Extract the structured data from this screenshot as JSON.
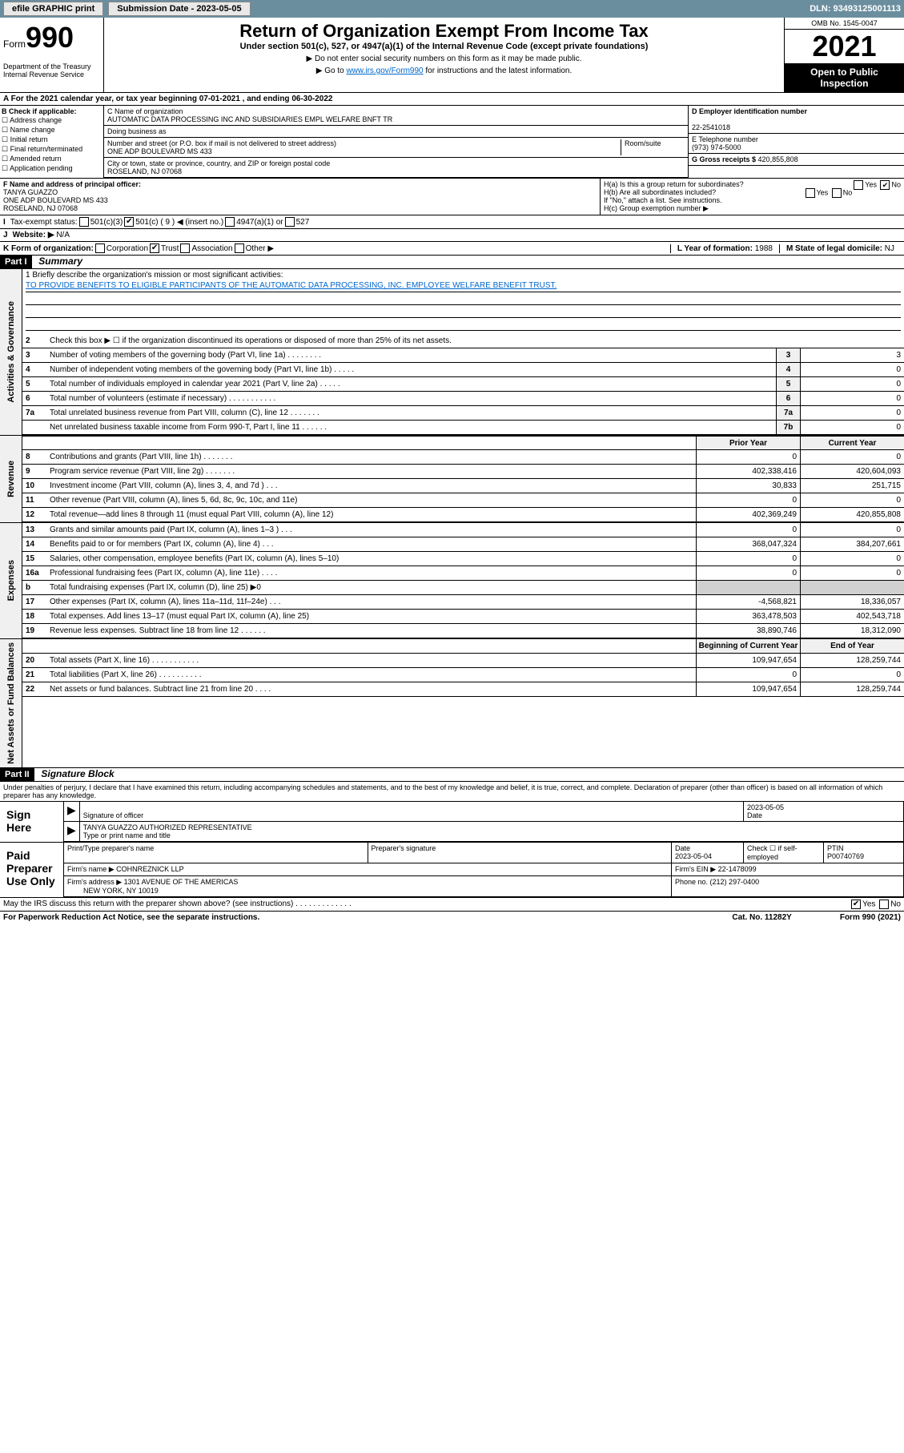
{
  "topbar": {
    "efile": "efile GRAPHIC print",
    "sub_label": "Submission Date - 2023-05-05",
    "dln": "DLN: 93493125001113"
  },
  "header": {
    "form": "Form",
    "form_num": "990",
    "title": "Return of Organization Exempt From Income Tax",
    "subtitle": "Under section 501(c), 527, or 4947(a)(1) of the Internal Revenue Code (except private foundations)",
    "note1": "▶ Do not enter social security numbers on this form as it may be made public.",
    "note2_pre": "▶ Go to ",
    "note2_link": "www.irs.gov/Form990",
    "note2_post": " for instructions and the latest information.",
    "dept": "Department of the Treasury\nInternal Revenue Service",
    "omb": "OMB No. 1545-0047",
    "year": "2021",
    "inspection": "Open to Public Inspection"
  },
  "section_a": "A For the 2021 calendar year, or tax year beginning 07-01-2021  , and ending 06-30-2022",
  "section_b": {
    "header": "B Check if applicable:",
    "items": [
      "Address change",
      "Name change",
      "Initial return",
      "Final return/terminated",
      "Amended return",
      "Application pending"
    ]
  },
  "section_c": {
    "name_lbl": "C Name of organization",
    "name": "AUTOMATIC DATA PROCESSING INC AND SUBSIDIARIES EMPL WELFARE BNFT TR",
    "dba_lbl": "Doing business as",
    "addr_lbl": "Number and street (or P.O. box if mail is not delivered to street address)",
    "room_lbl": "Room/suite",
    "addr": "ONE ADP BOULEVARD MS 433",
    "city_lbl": "City or town, state or province, country, and ZIP or foreign postal code",
    "city": "ROSELAND, NJ  07068"
  },
  "section_d": {
    "ein_lbl": "D Employer identification number",
    "ein": "22-2541018",
    "phone_lbl": "E Telephone number",
    "phone": "(973) 974-5000",
    "gross_lbl": "G Gross receipts $ ",
    "gross": "420,855,808"
  },
  "section_f": {
    "lbl": "F Name and address of principal officer:",
    "name": "TANYA GUAZZO",
    "addr1": "ONE ADP BOULEVARD MS 433",
    "addr2": "ROSELAND, NJ  07068"
  },
  "section_h": {
    "ha": "H(a)  Is this a group return for subordinates?",
    "hb": "H(b)  Are all subordinates included?",
    "hb_note": "If \"No,\" attach a list. See instructions.",
    "hc": "H(c)  Group exemption number ▶",
    "yes": "Yes",
    "no": "No"
  },
  "section_i": {
    "lbl": "Tax-exempt status:",
    "opts": [
      "501(c)(3)",
      "501(c) ( 9 ) ◀ (insert no.)",
      "4947(a)(1) or",
      "527"
    ]
  },
  "section_j": {
    "lbl": "Website: ▶",
    "val": "N/A"
  },
  "section_k": {
    "lbl": "K Form of organization:",
    "opts": [
      "Corporation",
      "Trust",
      "Association",
      "Other ▶"
    ]
  },
  "section_l": {
    "lbl": "L Year of formation: ",
    "val": "1988"
  },
  "section_m": {
    "lbl": "M State of legal domicile: ",
    "val": "NJ"
  },
  "part1": {
    "hdr": "Part I",
    "title": "Summary",
    "mission_lbl": "1  Briefly describe the organization's mission or most significant activities:",
    "mission": "TO PROVIDE BENEFITS TO ELIGIBLE PARTICIPANTS OF THE AUTOMATIC DATA PROCESSING, INC. EMPLOYEE WELFARE BENEFIT TRUST.",
    "line2": "Check this box ▶ ☐ if the organization discontinued its operations or disposed of more than 25% of its net assets.",
    "gov_label": "Activities & Governance",
    "rev_label": "Revenue",
    "exp_label": "Expenses",
    "net_label": "Net Assets or Fund Balances",
    "prior_hdr": "Prior Year",
    "current_hdr": "Current Year",
    "begin_hdr": "Beginning of Current Year",
    "end_hdr": "End of Year",
    "lines_gov": [
      {
        "n": "3",
        "d": "Number of voting members of the governing body (Part VI, line 1a)  .   .   .   .   .   .   .   .",
        "b": "3",
        "v": "3"
      },
      {
        "n": "4",
        "d": "Number of independent voting members of the governing body (Part VI, line 1b)  .   .   .   .   .",
        "b": "4",
        "v": "0"
      },
      {
        "n": "5",
        "d": "Total number of individuals employed in calendar year 2021 (Part V, line 2a)  .   .   .   .   .",
        "b": "5",
        "v": "0"
      },
      {
        "n": "6",
        "d": "Total number of volunteers (estimate if necessary)  .   .   .   .   .   .   .   .   .   .   .",
        "b": "6",
        "v": "0"
      },
      {
        "n": "7a",
        "d": "Total unrelated business revenue from Part VIII, column (C), line 12  .   .   .   .   .   .   .",
        "b": "7a",
        "v": "0"
      },
      {
        "n": "",
        "d": "Net unrelated business taxable income from Form 990-T, Part I, line 11  .   .   .   .   .   .",
        "b": "7b",
        "v": "0"
      }
    ],
    "lines_rev": [
      {
        "n": "8",
        "d": "Contributions and grants (Part VIII, line 1h)  .   .   .   .   .   .   .",
        "p": "0",
        "c": "0"
      },
      {
        "n": "9",
        "d": "Program service revenue (Part VIII, line 2g)  .   .   .   .   .   .   .",
        "p": "402,338,416",
        "c": "420,604,093"
      },
      {
        "n": "10",
        "d": "Investment income (Part VIII, column (A), lines 3, 4, and 7d )  .   .   .",
        "p": "30,833",
        "c": "251,715"
      },
      {
        "n": "11",
        "d": "Other revenue (Part VIII, column (A), lines 5, 6d, 8c, 9c, 10c, and 11e)",
        "p": "0",
        "c": "0"
      },
      {
        "n": "12",
        "d": "Total revenue—add lines 8 through 11 (must equal Part VIII, column (A), line 12)",
        "p": "402,369,249",
        "c": "420,855,808"
      }
    ],
    "lines_exp": [
      {
        "n": "13",
        "d": "Grants and similar amounts paid (Part IX, column (A), lines 1–3 )  .   .   .",
        "p": "0",
        "c": "0"
      },
      {
        "n": "14",
        "d": "Benefits paid to or for members (Part IX, column (A), line 4)  .   .   .",
        "p": "368,047,324",
        "c": "384,207,661"
      },
      {
        "n": "15",
        "d": "Salaries, other compensation, employee benefits (Part IX, column (A), lines 5–10)",
        "p": "0",
        "c": "0"
      },
      {
        "n": "16a",
        "d": "Professional fundraising fees (Part IX, column (A), line 11e)  .   .   .   .",
        "p": "0",
        "c": "0"
      },
      {
        "n": "b",
        "d": "Total fundraising expenses (Part IX, column (D), line 25) ▶0",
        "p": "",
        "c": "",
        "shade": true
      },
      {
        "n": "17",
        "d": "Other expenses (Part IX, column (A), lines 11a–11d, 11f–24e)  .   .   .",
        "p": "-4,568,821",
        "c": "18,336,057"
      },
      {
        "n": "18",
        "d": "Total expenses. Add lines 13–17 (must equal Part IX, column (A), line 25)",
        "p": "363,478,503",
        "c": "402,543,718"
      },
      {
        "n": "19",
        "d": "Revenue less expenses. Subtract line 18 from line 12  .   .   .   .   .   .",
        "p": "38,890,746",
        "c": "18,312,090"
      }
    ],
    "lines_net": [
      {
        "n": "20",
        "d": "Total assets (Part X, line 16)  .   .   .   .   .   .   .   .   .   .   .",
        "p": "109,947,654",
        "c": "128,259,744"
      },
      {
        "n": "21",
        "d": "Total liabilities (Part X, line 26)  .   .   .   .   .   .   .   .   .   .",
        "p": "0",
        "c": "0"
      },
      {
        "n": "22",
        "d": "Net assets or fund balances. Subtract line 21 from line 20  .   .   .   .",
        "p": "109,947,654",
        "c": "128,259,744"
      }
    ]
  },
  "part2": {
    "hdr": "Part II",
    "title": "Signature Block",
    "decl": "Under penalties of perjury, I declare that I have examined this return, including accompanying schedules and statements, and to the best of my knowledge and belief, it is true, correct, and complete. Declaration of preparer (other than officer) is based on all information of which preparer has any knowledge.",
    "sign_here": "Sign Here",
    "sig_officer": "Signature of officer",
    "sig_date": "2023-05-05",
    "date_lbl": "Date",
    "officer_name": "TANYA GUAZZO  AUTHORIZED REPRESENTATIVE",
    "officer_name_lbl": "Type or print name and title",
    "paid": "Paid Preparer Use Only",
    "prep_name_lbl": "Print/Type preparer's name",
    "prep_sig_lbl": "Preparer's signature",
    "prep_date_lbl": "Date",
    "prep_date": "2023-05-04",
    "self_emp": "Check ☐ if self-employed",
    "ptin_lbl": "PTIN",
    "ptin": "P00740769",
    "firm_name_lbl": "Firm's name      ▶ ",
    "firm_name": "COHNREZNICK LLP",
    "firm_ein_lbl": "Firm's EIN ▶ ",
    "firm_ein": "22-1478099",
    "firm_addr_lbl": "Firm's address ▶ ",
    "firm_addr": "1301 AVENUE OF THE AMERICAS",
    "firm_city": "NEW YORK, NY  10019",
    "firm_phone_lbl": "Phone no. ",
    "firm_phone": "(212) 297-0400",
    "discuss": "May the IRS discuss this return with the preparer shown above? (see instructions)  .   .   .   .   .   .   .   .   .   .   .   .   ."
  },
  "footer": {
    "left": "For Paperwork Reduction Act Notice, see the separate instructions.",
    "mid": "Cat. No. 11282Y",
    "right": "Form 990 (2021)"
  }
}
